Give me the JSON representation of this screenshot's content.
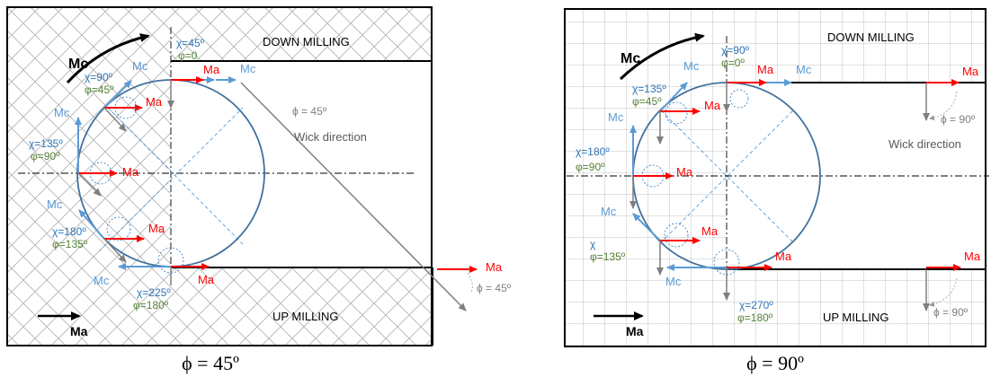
{
  "colors": {
    "moment_arrow": "#000000",
    "cutting_moment": "#5b9bd5",
    "axial_moment": "#ff0000",
    "wick": "#808080",
    "chi_label": "#2e75b6",
    "phi_label": "#538135",
    "tool_circle": "#41719c",
    "mesh": "#a6a6a6"
  },
  "left_panel": {
    "down_label": "DOWN MILLING",
    "up_label": "UP MILLING",
    "mc_big": "Mc",
    "ma_big": "Ma",
    "wick_label": "Wick direction",
    "phi_note": "ϕ = 45º",
    "phi_note_bottom": "ϕ = 45º",
    "caption": "ϕ = 45º",
    "positions": [
      {
        "chi": "χ=45º",
        "phi": "φ=0",
        "mc": "Mc",
        "ma": "Ma"
      },
      {
        "chi": "χ=90º",
        "phi": "φ=45º",
        "mc": "Mc",
        "ma": "Ma"
      },
      {
        "chi": "χ=135º",
        "phi": "φ=90º",
        "mc": "Mc",
        "ma": "Ma"
      },
      {
        "chi": "χ=180º",
        "phi": "φ=135º",
        "mc": "Mc",
        "ma": "Ma"
      },
      {
        "chi": "χ=225º",
        "phi": "φ=180º",
        "mc": "Mc",
        "ma": "Ma"
      }
    ],
    "outer_ma_top": "Mc",
    "outer_ma_right": "Ma"
  },
  "right_panel": {
    "down_label": "DOWN MILLING",
    "up_label": "UP MILLING",
    "mc_big": "Mc",
    "ma_big": "Ma",
    "wick_label": "Wick direction",
    "phi_note": "ϕ = 90º",
    "phi_note_bottom": "ϕ = 90º",
    "caption": "ϕ = 90º",
    "positions": [
      {
        "chi": "χ=90º",
        "phi": "φ=0º",
        "mc": "Mc",
        "ma": "Ma"
      },
      {
        "chi": "χ=135º",
        "phi": "φ=45º",
        "mc": "Mc",
        "ma": "Ma"
      },
      {
        "chi": "χ=180º",
        "phi": "φ=90º",
        "mc": "Mc",
        "ma": "Ma"
      },
      {
        "chi": "χ",
        "phi": "φ=135º",
        "mc": "Mc",
        "ma": "Ma"
      },
      {
        "chi": "χ=270º",
        "phi": "φ=180º",
        "mc": "Mc",
        "ma": "Ma"
      }
    ],
    "outer_ma_top": "Ma",
    "outer_ma_bottom": "Ma"
  }
}
